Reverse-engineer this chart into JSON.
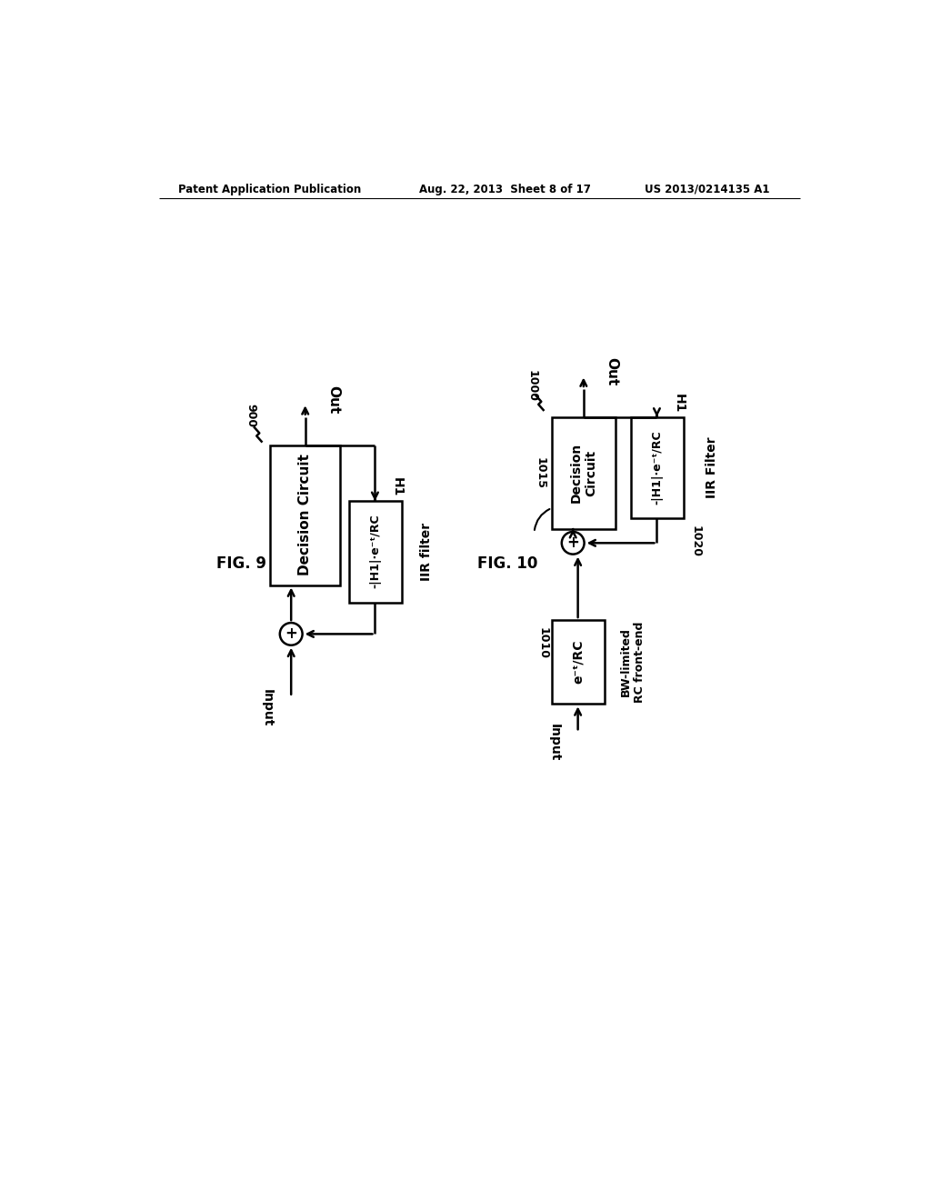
{
  "bg_color": "#ffffff",
  "header_left": "Patent Application Publication",
  "header_center": "Aug. 22, 2013  Sheet 8 of 17",
  "header_right": "US 2013/0214135 A1",
  "fig9_label": "FIG. 9",
  "fig9_ref": "900",
  "fig9_dc_label": "Decision Circuit",
  "fig9_iir_label": "-|H1|·e⁻ᵗ/RC",
  "fig9_iir_side": "IIR filter",
  "fig9_h1": "H1",
  "fig9_out": "Out",
  "fig9_input": "Input",
  "fig10_label": "FIG. 10",
  "fig10_ref": "1000",
  "fig10_ref1010": "1010",
  "fig10_ref1015": "1015",
  "fig10_ref1020": "1020",
  "fig10_dc_label": "Decision\nCircuit",
  "fig10_rc_label": "e⁻ᵗ/RC",
  "fig10_rc_side": "BW-limited\nRC front-end",
  "fig10_iir_label": "-|H1|·e⁻ᵗ/RC",
  "fig10_iir_side": "IIR Filter",
  "fig10_h1": "H1",
  "fig10_out": "Out",
  "fig10_input": "Input"
}
